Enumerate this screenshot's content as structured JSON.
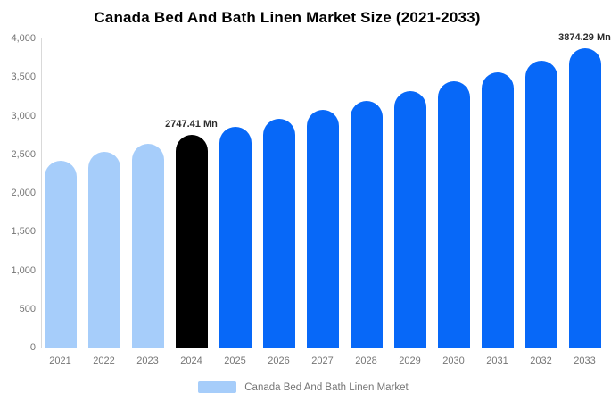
{
  "chart_data": {
    "type": "bar",
    "title": "Canada Bed And Bath Linen Market Size (2021-2033)",
    "categories": [
      "2021",
      "2022",
      "2023",
      "2024",
      "2025",
      "2026",
      "2027",
      "2028",
      "2029",
      "2030",
      "2031",
      "2032",
      "2033"
    ],
    "values": [
      2420,
      2535,
      2640,
      2747.41,
      2850,
      2960,
      3075,
      3195,
      3320,
      3440,
      3560,
      3710,
      3874.29
    ],
    "unit": "Mn",
    "xlabel": "",
    "ylabel": "",
    "ylim": [
      0,
      4000
    ],
    "ytick_labels": [
      "0",
      "500",
      "1,000",
      "1,500",
      "2,000",
      "2,500",
      "3,000",
      "3,500",
      "4,000"
    ],
    "grid": false,
    "legend_position": "bottom",
    "palette": {
      "historical": "#A6CDFA",
      "highlight": "#000000",
      "forecast": "#0768F8"
    },
    "bar_colors": [
      "#A6CDFA",
      "#A6CDFA",
      "#A6CDFA",
      "#000000",
      "#0768F8",
      "#0768F8",
      "#0768F8",
      "#0768F8",
      "#0768F8",
      "#0768F8",
      "#0768F8",
      "#0768F8",
      "#0768F8"
    ],
    "data_labels": [
      {
        "index": 3,
        "text": "2747.41 Mn"
      },
      {
        "index": 12,
        "text": "3874.29 Mn"
      }
    ],
    "legend": [
      {
        "label": "Canada Bed And Bath Linen Market",
        "color": "#A6CDFA"
      }
    ]
  }
}
